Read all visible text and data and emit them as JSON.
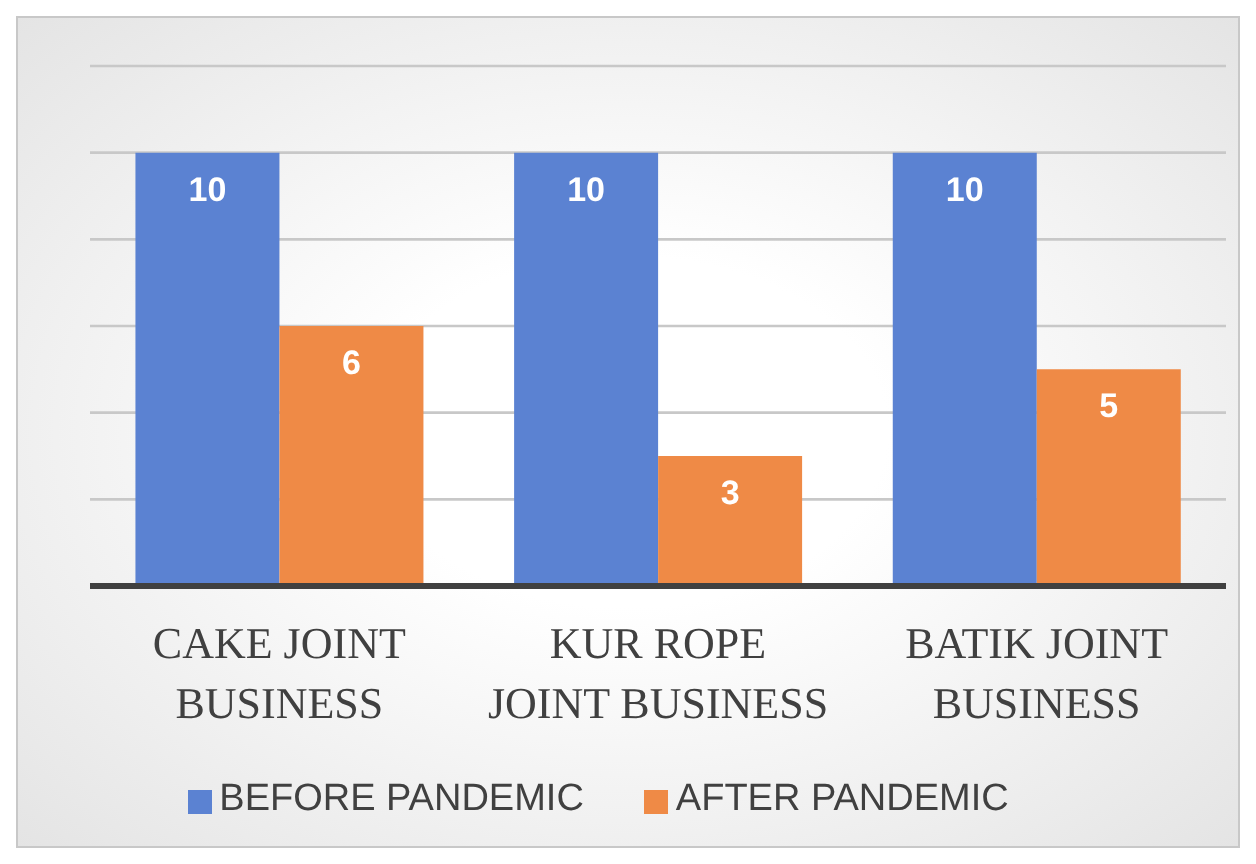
{
  "chart_data": {
    "type": "bar",
    "categories": [
      "CAKE JOINT BUSINESS",
      "KUR ROPE JOINT BUSINESS",
      "BATIK JOINT BUSINESS"
    ],
    "series": [
      {
        "name": "BEFORE PANDEMIC",
        "color": "#5b82d2",
        "values": [
          10,
          10,
          10
        ]
      },
      {
        "name": "AFTER PANDEMIC",
        "color": "#ef8a46",
        "values": [
          6,
          3,
          5
        ]
      }
    ],
    "ylim": [
      0,
      12
    ],
    "yticks": [
      {
        "value": 0,
        "label": null
      },
      {
        "value": 2,
        "label": null
      },
      {
        "value": 4,
        "label": null
      },
      {
        "value": 6,
        "label": null
      },
      {
        "value": 8,
        "label": null
      },
      {
        "value": 10,
        "label": null
      },
      {
        "value": 12,
        "label": null
      }
    ],
    "tick_labels": "x",
    "grid": "y",
    "data_labels": true,
    "legend": "bottom"
  }
}
